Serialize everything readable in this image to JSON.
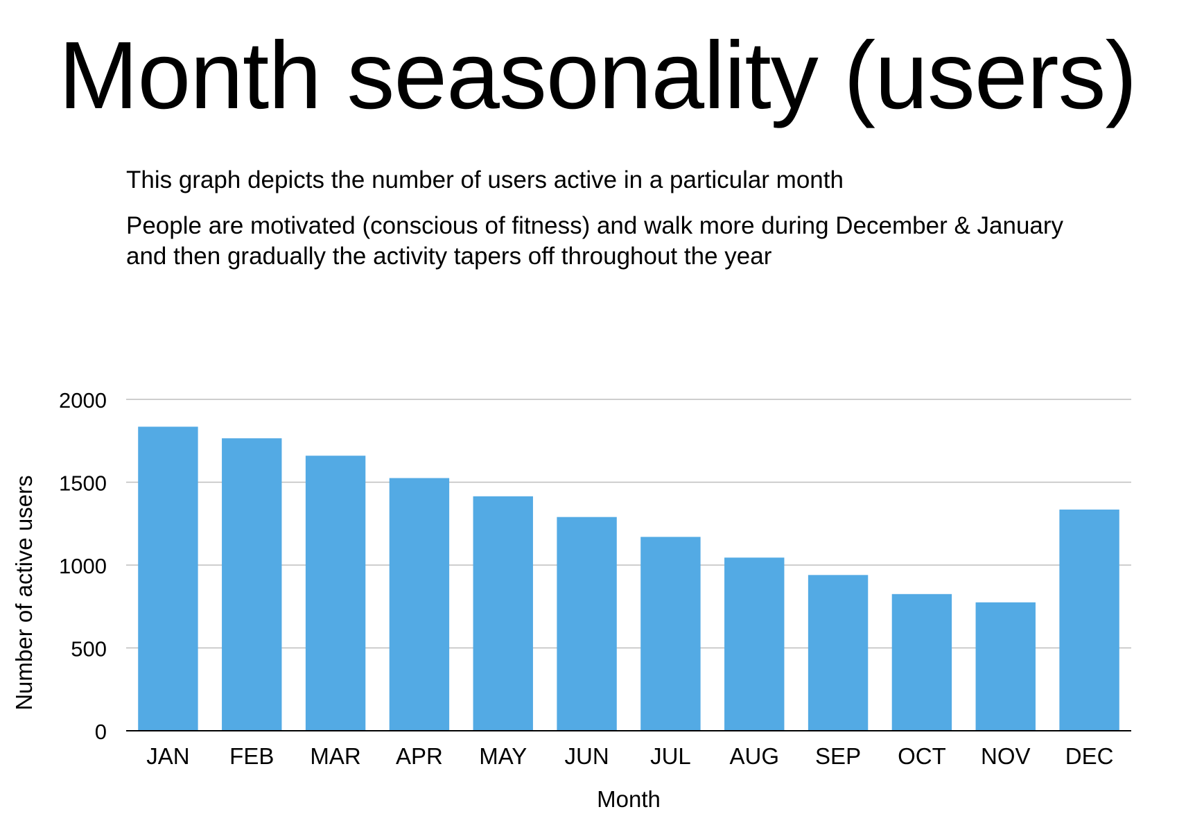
{
  "slide": {
    "title": "Month seasonality (users)",
    "description_1": "This graph depicts the number of users active in a particular month",
    "description_2": "People are motivated (conscious of fitness) and walk more during December & January and then gradually the activity tapers off throughout the year"
  },
  "chart_data": {
    "type": "bar",
    "title": "",
    "xlabel": "Month",
    "ylabel": "Number of active users",
    "categories": [
      "JAN",
      "FEB",
      "MAR",
      "APR",
      "MAY",
      "JUN",
      "JUL",
      "AUG",
      "SEP",
      "OCT",
      "NOV",
      "DEC"
    ],
    "values": [
      1835,
      1765,
      1660,
      1525,
      1415,
      1290,
      1170,
      1045,
      940,
      825,
      775,
      1335
    ],
    "ylim": [
      0,
      2000
    ],
    "yticks": [
      0,
      500,
      1000,
      1500,
      2000
    ],
    "grid": true,
    "legend": "none",
    "bar_color": "#53aae4",
    "grid_color": "#bdbdbd",
    "axis_color": "#000000"
  }
}
